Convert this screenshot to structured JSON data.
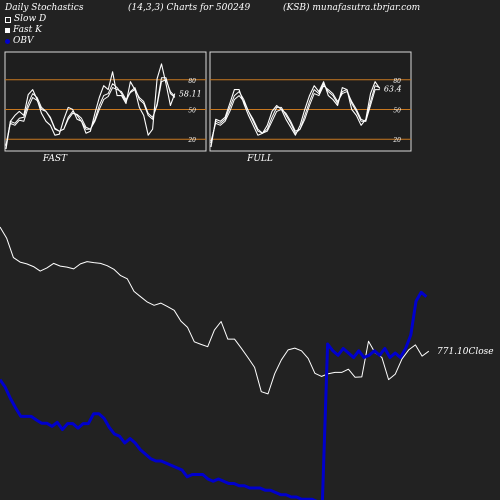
{
  "header": {
    "left": "Daily Stochastics",
    "center": "(14,3,3) Charts for 500249",
    "right": "(KSB) munafasutra.tbrjar.com"
  },
  "legend": [
    {
      "label": "Slow  D",
      "style": "outline",
      "color": "#ffffff"
    },
    {
      "label": "Fast K",
      "style": "white",
      "color": "#ffffff"
    },
    {
      "label": "OBV",
      "style": "blue",
      "color": "#0000cc"
    }
  ],
  "colors": {
    "background": "#222222",
    "panel_bg": "#1e1e1e",
    "panel_border": "#d8d8d8",
    "guide": "#c87820",
    "line": "#ffffff",
    "obv": "#0000cc"
  },
  "chart_data": [
    {
      "type": "line",
      "panel": "fast",
      "label": "FAST",
      "ylim": [
        0,
        100
      ],
      "yticks": [
        20,
        50,
        80
      ],
      "guides": [
        20,
        50,
        80
      ],
      "last_value_label": "58.11",
      "series": [
        {
          "values": [
            5,
            28,
            26,
            31,
            30,
            44,
            54,
            51,
            42,
            40,
            34,
            23,
            20,
            22,
            32,
            38,
            37,
            33,
            24,
            22,
            30,
            42,
            52,
            55,
            64,
            62,
            60,
            52,
            59,
            62,
            54,
            50,
            38,
            34,
            46,
            70,
            72,
            60,
            55
          ]
        },
        {
          "values": [
            6,
            30,
            28,
            33,
            34,
            48,
            58,
            54,
            44,
            40,
            33,
            22,
            20,
            22,
            34,
            40,
            36,
            30,
            22,
            22,
            32,
            46,
            56,
            58,
            68,
            64,
            58,
            50,
            60,
            64,
            52,
            48,
            36,
            32,
            48,
            74,
            74,
            58,
            54
          ]
        },
        {
          "values": [
            2,
            30,
            36,
            40,
            36,
            57,
            62,
            52,
            38,
            30,
            26,
            16,
            17,
            32,
            44,
            42,
            32,
            30,
            18,
            20,
            38,
            54,
            66,
            62,
            80,
            56,
            56,
            48,
            70,
            62,
            44,
            36,
            16,
            22,
            73,
            88,
            68,
            46,
            58
          ]
        }
      ]
    },
    {
      "type": "line",
      "panel": "full",
      "label": "FULL",
      "ylim": [
        0,
        100
      ],
      "yticks": [
        20,
        50,
        80
      ],
      "guides": [
        20,
        50,
        80
      ],
      "last_value_label": "63.4",
      "series": [
        {
          "values": [
            10,
            28,
            26,
            30,
            40,
            52,
            56,
            50,
            40,
            32,
            22,
            18,
            20,
            30,
            40,
            42,
            38,
            30,
            20,
            22,
            32,
            46,
            58,
            56,
            66,
            62,
            58,
            50,
            58,
            60,
            50,
            42,
            32,
            30,
            46,
            62,
            62
          ]
        },
        {
          "values": [
            8,
            30,
            28,
            32,
            44,
            56,
            60,
            52,
            40,
            30,
            20,
            18,
            22,
            34,
            44,
            44,
            36,
            28,
            18,
            22,
            36,
            50,
            62,
            58,
            68,
            60,
            56,
            48,
            60,
            62,
            48,
            40,
            30,
            30,
            50,
            66,
            64
          ]
        },
        {
          "values": [
            4,
            32,
            30,
            34,
            48,
            62,
            62,
            48,
            36,
            26,
            16,
            18,
            26,
            40,
            46,
            42,
            32,
            24,
            16,
            26,
            42,
            56,
            66,
            60,
            70,
            56,
            52,
            46,
            64,
            62,
            42,
            36,
            26,
            32,
            58,
            70,
            63
          ]
        }
      ]
    },
    {
      "type": "line",
      "panel": "price-obv",
      "last_value_label": "771.10Close",
      "series": [
        {
          "values": [
            14.0,
            11.5,
            7.2,
            6.2,
            5.8,
            5.2,
            4.2,
            4.9,
            5.9,
            5.3,
            5.1,
            4.7,
            5.8,
            6.3,
            6.1,
            5.9,
            5.4,
            4.6,
            3.2,
            2.5,
            -0.3,
            -1.5,
            -2.7,
            -3.4,
            -2.9,
            -3.7,
            -4.5,
            -6.9,
            -8.3,
            -11.5,
            -12.1,
            -12.6,
            -8.9,
            -7.0,
            -10.9,
            -10.9,
            -12.9,
            -15.0,
            -17.2,
            -22.6,
            -23.1,
            -18.6,
            -15.5,
            -13.3,
            -12.9,
            -13.5,
            -15.2,
            -18.5,
            -19.2,
            -18.6,
            -18.3,
            -18.3,
            -17.6,
            -19.4,
            -19.3,
            -11.4,
            -14.0,
            -15.0,
            -19.9,
            -18.7,
            -15.3,
            -13.3,
            -12.2,
            -14.7,
            -13.6
          ]
        },
        {
          "values": [
            -19.9,
            -21.6,
            -24.1,
            -26.2,
            -28.1,
            -28.1,
            -28.1,
            -28.9,
            -29.6,
            -29.6,
            -30.3,
            -29.4,
            -31.0,
            -29.7,
            -29.7,
            -30.7,
            -29.7,
            -29.7,
            -27.5,
            -27.5,
            -28.5,
            -30.5,
            -32.0,
            -32.5,
            -34.0,
            -33.0,
            -34.0,
            -35.5,
            -36.5,
            -37.5,
            -38.0,
            -38.0,
            -38.5,
            -39.0,
            -39.5,
            -40.0,
            -41.5,
            -41.0,
            -41.0,
            -41.0,
            -42.0,
            -42.5,
            -42.0,
            -42.5,
            -43.0,
            -43.0,
            -43.5,
            -43.5,
            -44.0,
            -44.0,
            -44.0,
            -44.5,
            -44.5,
            -45.0,
            -45.5,
            -45.5,
            -46.0,
            -46.0,
            -46.5,
            -46.5,
            -46.5,
            -47.0,
            -47.0,
            -12.0,
            -13.5,
            -14.5,
            -13.0,
            -14.0,
            -15.0,
            -13.5,
            -15.0,
            -14.5,
            -13.5,
            -14.5,
            -13.0,
            -15.0,
            -14.0,
            -15.0,
            -13.0,
            -10.0,
            -2.5,
            -0.5,
            -1.5
          ]
        }
      ]
    }
  ]
}
